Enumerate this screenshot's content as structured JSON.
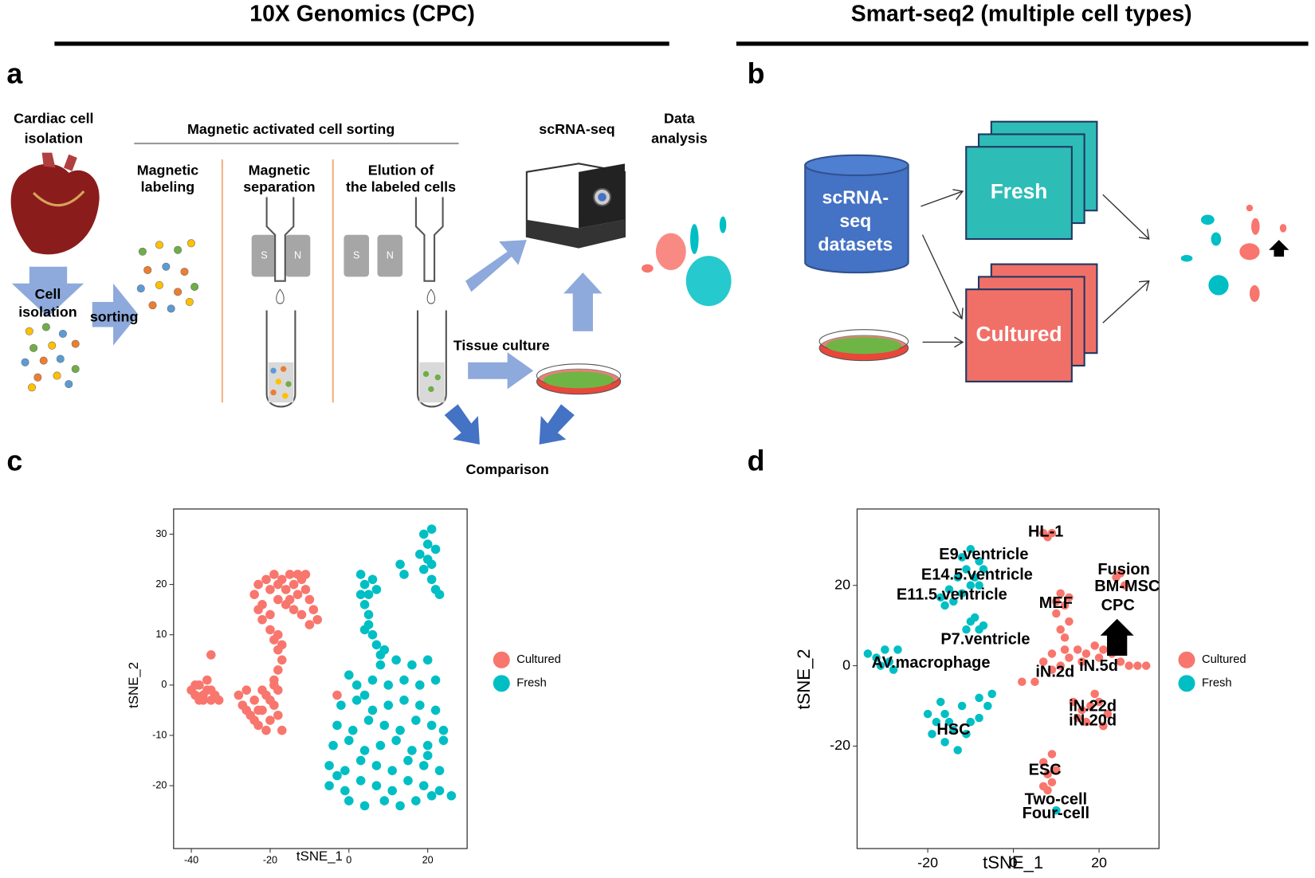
{
  "headers": {
    "left": "10X Genomics (CPC)",
    "right": "Smart-seq2 (multiple cell types)"
  },
  "panel_labels": [
    "a",
    "b",
    "c",
    "d"
  ],
  "panel_a": {
    "cardiac": [
      "Cardiac cell",
      "isolation"
    ],
    "macs": "Magnetic activated cell sorting",
    "labeling": [
      "Magnetic",
      "labeling"
    ],
    "separation": [
      "Magnetic",
      "separation"
    ],
    "elution": [
      "Elution of",
      "the labeled cells"
    ],
    "scrna": "scRNA-seq",
    "data_analysis": [
      "Data",
      "analysis"
    ],
    "cell_isolation": [
      "Cell",
      "isolation"
    ],
    "sorting": "sorting",
    "tissue_culture": "Tissue culture",
    "comparison": "Comparison",
    "magnet_s": "S",
    "magnet_n": "N"
  },
  "panel_b": {
    "database": [
      "scRNA-",
      "seq",
      "datasets"
    ],
    "fresh": "Fresh",
    "cultured": "Cultured"
  },
  "chart_data": [
    {
      "type": "scatter",
      "x_label": "tSNE_1",
      "y_label": "tSNE_2",
      "grid": false,
      "xlim": [
        -44.5,
        30
      ],
      "ylim": [
        -32.5,
        35
      ],
      "xticks": [
        -40,
        -20,
        0,
        20
      ],
      "yticks": [
        -20,
        -10,
        0,
        10,
        20,
        30
      ],
      "series": [
        {
          "name": "Cultured",
          "color": "#F8766D",
          "x": [
            -40,
            -39,
            -38,
            -37,
            -36,
            -35,
            -34,
            -39,
            -37,
            -36,
            -38,
            -35,
            -33,
            -35,
            -3,
            -24,
            -23,
            -22,
            -21,
            -20,
            -19,
            -18,
            -17,
            -16,
            -15,
            -14,
            -13,
            -12,
            -11,
            -10,
            -9,
            -12,
            -14,
            -16,
            -20,
            -22,
            -18,
            -15,
            -11,
            -13,
            -23,
            -8,
            -10,
            -20,
            -19,
            -18,
            -17,
            -18,
            -19,
            -18,
            -17,
            -28,
            -27,
            -26,
            -25,
            -24,
            -23,
            -22,
            -21,
            -20,
            -19,
            -18,
            -17,
            -26,
            -24,
            -22,
            -20,
            -18,
            -21,
            -19,
            -23
          ],
          "y": [
            -1,
            -2,
            0,
            -2,
            -1,
            -3,
            -2,
            0,
            -3,
            1,
            -3,
            -1,
            -3,
            6,
            -2,
            18,
            20,
            16,
            21,
            19,
            22,
            17,
            21,
            19,
            22,
            20,
            18,
            21,
            19,
            17,
            15,
            14,
            15,
            16,
            14,
            13,
            20,
            17,
            22,
            22,
            15,
            13,
            12,
            11,
            9,
            7,
            5,
            3,
            1,
            10,
            8,
            -2,
            -4,
            -1,
            -6,
            -3,
            -8,
            -5,
            -2,
            -7,
            -4,
            -1,
            -9,
            -5,
            -7,
            -1,
            -3,
            -6,
            -9,
            0,
            -5
          ]
        },
        {
          "name": "Fresh",
          "color": "#00BFC4",
          "x": [
            19,
            20,
            21,
            22,
            20,
            19,
            21,
            22,
            18,
            21,
            23,
            13,
            14,
            3,
            4,
            5,
            6,
            4,
            5,
            6,
            5,
            7,
            8,
            9,
            3,
            7,
            4,
            8,
            12,
            16,
            20,
            2,
            6,
            10,
            14,
            18,
            22,
            0,
            -2,
            2,
            6,
            10,
            14,
            18,
            22,
            -3,
            1,
            5,
            9,
            13,
            17,
            21,
            24,
            -4,
            0,
            4,
            8,
            12,
            16,
            20,
            24,
            -5,
            -1,
            3,
            7,
            11,
            15,
            19,
            23,
            -5,
            -1,
            3,
            7,
            11,
            15,
            19,
            23,
            26,
            0,
            4,
            9,
            13,
            17,
            21,
            -3,
            4,
            20
          ],
          "y": [
            30,
            28,
            31,
            27,
            25,
            23,
            21,
            19,
            26,
            24,
            18,
            24,
            22,
            22,
            20,
            18,
            21,
            16,
            12,
            10,
            14,
            8,
            6,
            7,
            18,
            19,
            11,
            4,
            5,
            4,
            5,
            0,
            1,
            0,
            1,
            0,
            1,
            2,
            -4,
            -3,
            -5,
            -4,
            -3,
            -4,
            -5,
            -8,
            -9,
            -7,
            -8,
            -9,
            -7,
            -8,
            -9,
            -12,
            -11,
            -13,
            -12,
            -11,
            -13,
            -12,
            -11,
            -16,
            -17,
            -15,
            -16,
            -17,
            -15,
            -16,
            -17,
            -20,
            -21,
            -19,
            -20,
            -21,
            -19,
            -20,
            -21,
            -22,
            -23,
            -24,
            -23,
            -24,
            -23,
            -22,
            -18,
            -2,
            -14
          ]
        }
      ]
    },
    {
      "type": "scatter",
      "x_label": "tSNE_1",
      "y_label": "tSNE_2",
      "grid": false,
      "xlim": [
        -36.5,
        34
      ],
      "ylim": [
        -45.5,
        39
      ],
      "xticks": [
        -20,
        0,
        20
      ],
      "yticks": [
        -20,
        0,
        20
      ],
      "annotations": [
        "HL-1",
        "E9.ventricle",
        "E14.5.ventricle",
        "Fusion",
        "BM-MSC",
        "E11.5.ventricle",
        "MEF",
        "CPC",
        "P7.ventricle",
        "AV.macrophage",
        "iN.2d",
        "iN.5d",
        "iN.22d",
        "iN.20d",
        "HSC",
        "ESC",
        "Two-cell",
        "Four-cell"
      ],
      "series": [
        {
          "name": "Cultured",
          "color": "#F8766D",
          "x": [
            7,
            8,
            9,
            11,
            12,
            10,
            13,
            11,
            12,
            13,
            10,
            7,
            9,
            11,
            13,
            15,
            17,
            19,
            21,
            23,
            25,
            27,
            29,
            31,
            9,
            12,
            16,
            20,
            24,
            5,
            24,
            26,
            25,
            14,
            16,
            18,
            20,
            22,
            17,
            15,
            21,
            19,
            7,
            8,
            9,
            8,
            10,
            9,
            7,
            2
          ],
          "y": [
            33,
            32,
            33,
            18,
            15,
            13,
            11,
            9,
            7,
            17,
            16,
            1,
            3,
            0,
            2,
            4,
            3,
            5,
            4,
            3,
            1,
            0,
            0,
            0,
            -1,
            4,
            1,
            2,
            5,
            -4,
            22,
            20,
            23,
            -9,
            -11,
            -10,
            -9,
            -12,
            -14,
            -13,
            -15,
            -7,
            -24,
            -27,
            -29,
            -31,
            -26,
            -22,
            -30,
            -4
          ]
        },
        {
          "name": "Fresh",
          "color": "#00BFC4",
          "x": [
            -12,
            -10,
            -8,
            -11,
            -9,
            -7,
            -13,
            -10,
            -15,
            -17,
            -14,
            -16,
            -12,
            -8,
            -10,
            -8,
            -9,
            -7,
            -11,
            -34,
            -32,
            -30,
            -29,
            -31,
            -28,
            -27,
            -20,
            -18,
            -16,
            -14,
            -12,
            -10,
            -8,
            -6,
            -19,
            -16,
            -13,
            -11,
            -8,
            -15,
            -17,
            -5,
            10
          ],
          "y": [
            27,
            29,
            26,
            24,
            22,
            24,
            22,
            20,
            19,
            17,
            16,
            15,
            18,
            20,
            11,
            9,
            12,
            10,
            9,
            3,
            2,
            4,
            1,
            0,
            -1,
            4,
            -12,
            -14,
            -12,
            -16,
            -10,
            -14,
            -8,
            -10,
            -17,
            -19,
            -21,
            -17,
            -13,
            -14,
            -9,
            -7,
            -36
          ]
        }
      ]
    }
  ]
}
